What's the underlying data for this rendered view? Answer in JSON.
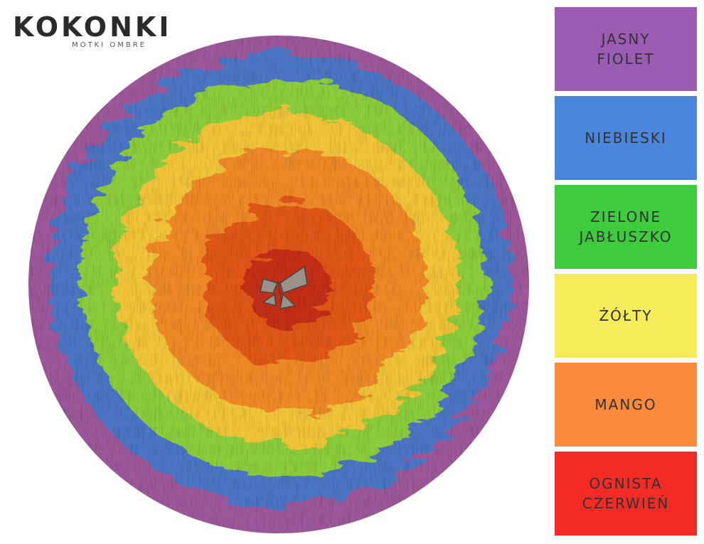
{
  "brand": {
    "name": "KOKONKI",
    "tagline": "MOTKI OMBRE"
  },
  "swatches": [
    {
      "lines": [
        "JASNY",
        "FIOLET"
      ]
    },
    {
      "lines": [
        "NIEBIESKI"
      ]
    },
    {
      "lines": [
        "ZIELONE",
        "JABŁUSZKO"
      ]
    },
    {
      "lines": [
        "ŻÓŁTY"
      ]
    },
    {
      "lines": [
        "MANGO"
      ]
    },
    {
      "lines": [
        "OGNISTA",
        "CZERWIEŃ"
      ]
    }
  ]
}
